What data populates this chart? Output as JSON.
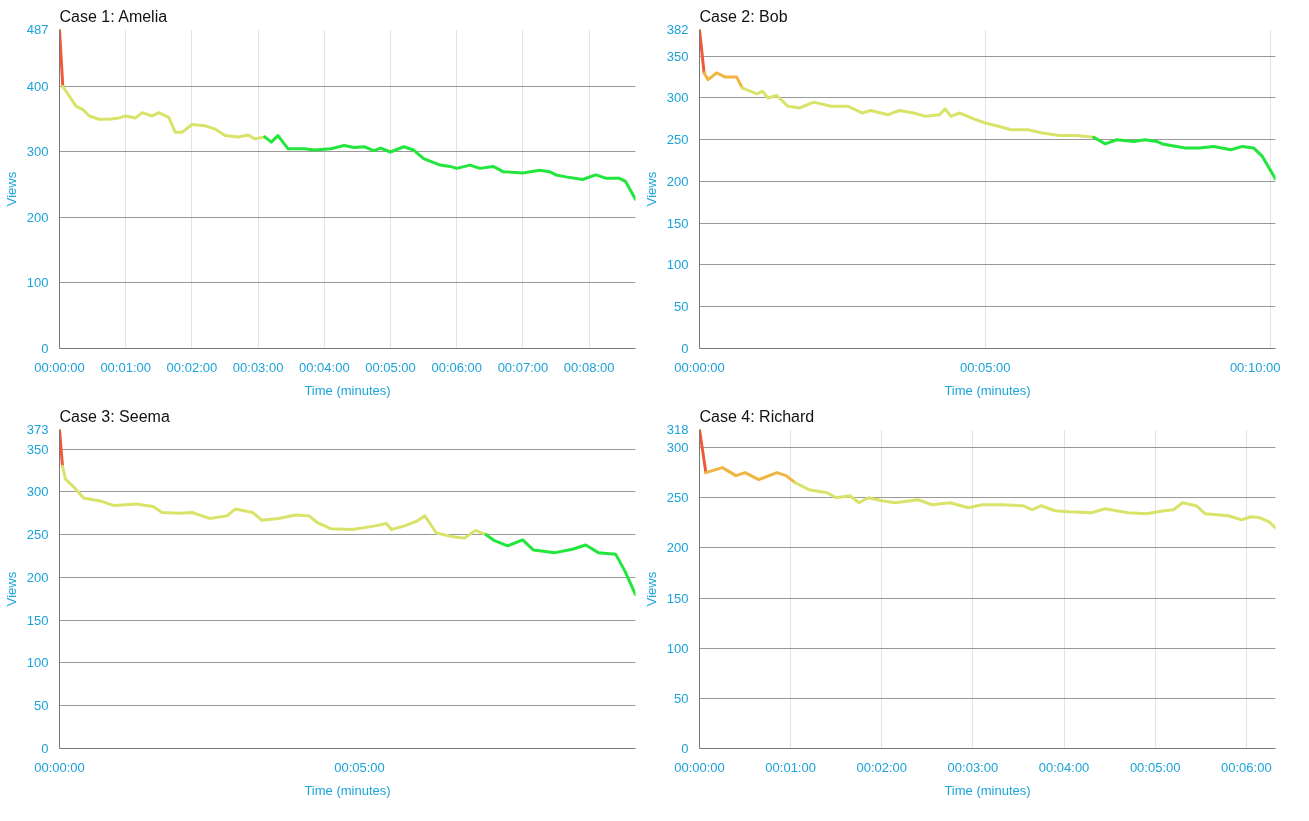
{
  "chart_data": [
    {
      "type": "line",
      "title": "Case 1: Amelia",
      "xlabel": "Time (minutes)",
      "ylabel": "Views",
      "xlim": [
        0,
        8.7
      ],
      "ylim": [
        0,
        487
      ],
      "grid": true,
      "xticks": [
        {
          "value": 0,
          "label": "00:00:00"
        },
        {
          "value": 1,
          "label": "00:01:00"
        },
        {
          "value": 2,
          "label": "00:02:00"
        },
        {
          "value": 3,
          "label": "00:03:00"
        },
        {
          "value": 4,
          "label": "00:04:00"
        },
        {
          "value": 5,
          "label": "00:05:00"
        },
        {
          "value": 6,
          "label": "00:06:00"
        },
        {
          "value": 7,
          "label": "00:07:00"
        },
        {
          "value": 8,
          "label": "00:08:00"
        }
      ],
      "yticks": [
        0,
        100,
        200,
        300,
        400,
        487
      ],
      "series": [
        {
          "color": "#ee5a3a",
          "x": [
            0,
            0.05
          ],
          "values": [
            487,
            400
          ]
        },
        {
          "color": "#d9e36a",
          "x": [
            0.05,
            0.15,
            0.25,
            0.35,
            0.45,
            0.6,
            0.75,
            0.9,
            1.0,
            1.15,
            1.25,
            1.4,
            1.5,
            1.65,
            1.75,
            1.85,
            2.0,
            2.2,
            2.35,
            2.5,
            2.7,
            2.85,
            2.95,
            3.1
          ],
          "values": [
            400,
            385,
            370,
            365,
            355,
            350,
            350,
            352,
            355,
            352,
            360,
            355,
            360,
            353,
            330,
            330,
            342,
            340,
            335,
            325,
            323,
            326,
            320,
            323
          ]
        },
        {
          "color": "#22e63c",
          "x": [
            3.1,
            3.2,
            3.3,
            3.45,
            3.7,
            3.85,
            4.1,
            4.3,
            4.45,
            4.6,
            4.75,
            4.85,
            5.0,
            5.2,
            5.35,
            5.5,
            5.75,
            5.9,
            6.0,
            6.2,
            6.35,
            6.55,
            6.7,
            7.0,
            7.25,
            7.4,
            7.5,
            7.65,
            7.9,
            8.1,
            8.25,
            8.45,
            8.55,
            8.7
          ],
          "values": [
            323,
            315,
            325,
            305,
            305,
            303,
            305,
            310,
            307,
            308,
            302,
            306,
            300,
            308,
            303,
            290,
            280,
            278,
            275,
            280,
            275,
            278,
            270,
            268,
            272,
            270,
            265,
            262,
            258,
            265,
            260,
            260,
            255,
            228
          ]
        }
      ]
    },
    {
      "type": "line",
      "title": "Case 2: Bob",
      "xlabel": "Time (minutes)",
      "ylabel": "Views",
      "xlim": [
        0,
        10.08
      ],
      "ylim": [
        0,
        382
      ],
      "grid": true,
      "xticks": [
        {
          "value": 0,
          "label": "00:00:00"
        },
        {
          "value": 5,
          "label": "00:05:00"
        },
        {
          "value": 10,
          "label": "00:10:00"
        }
      ],
      "yticks": [
        0,
        50,
        100,
        150,
        200,
        250,
        300,
        350,
        382
      ],
      "series": [
        {
          "color": "#ee5a3a",
          "x": [
            0,
            0.08
          ],
          "values": [
            382,
            330
          ]
        },
        {
          "color": "#f0b440",
          "x": [
            0.08,
            0.15,
            0.3,
            0.45,
            0.65,
            0.75
          ],
          "values": [
            330,
            322,
            330,
            325,
            325,
            312
          ]
        },
        {
          "color": "#d9e36a",
          "x": [
            0.75,
            1.0,
            1.1,
            1.2,
            1.35,
            1.55,
            1.75,
            2.0,
            2.3,
            2.6,
            2.85,
            3.0,
            3.3,
            3.5,
            3.75,
            3.95,
            4.2,
            4.3,
            4.4,
            4.55,
            4.8,
            5.0,
            5.3,
            5.45,
            5.75,
            6.0,
            6.3,
            6.6,
            6.9
          ],
          "values": [
            312,
            305,
            308,
            300,
            303,
            290,
            288,
            295,
            290,
            290,
            282,
            285,
            280,
            285,
            282,
            278,
            280,
            287,
            278,
            282,
            275,
            270,
            265,
            262,
            262,
            258,
            255,
            255,
            253
          ]
        },
        {
          "color": "#22e63c",
          "x": [
            6.9,
            7.1,
            7.3,
            7.6,
            7.8,
            8.0,
            8.1,
            8.25,
            8.5,
            8.75,
            9.0,
            9.3,
            9.5,
            9.7,
            9.85,
            10.08
          ],
          "values": [
            253,
            245,
            250,
            248,
            250,
            248,
            245,
            243,
            240,
            240,
            242,
            238,
            242,
            240,
            230,
            203
          ]
        }
      ]
    },
    {
      "type": "line",
      "title": "Case 3: Seema",
      "xlabel": "Time (minutes)",
      "ylabel": "Views",
      "xlim": [
        0,
        9.6
      ],
      "ylim": [
        0,
        373
      ],
      "grid": "y",
      "xticks": [
        {
          "value": 0,
          "label": "00:00:00"
        },
        {
          "value": 5,
          "label": "00:05:00"
        }
      ],
      "yticks": [
        0,
        50,
        100,
        150,
        200,
        250,
        300,
        350,
        373
      ],
      "series": [
        {
          "color": "#ee5a3a",
          "x": [
            0,
            0.05
          ],
          "values": [
            373,
            330
          ]
        },
        {
          "color": "#d9e36a",
          "x": [
            0.05,
            0.1,
            0.25,
            0.4,
            0.7,
            0.91,
            1.28,
            1.56,
            1.71,
            1.99,
            2.21,
            2.5,
            2.79,
            2.93,
            3.22,
            3.37,
            3.65,
            3.94,
            4.16,
            4.3,
            4.52,
            4.88,
            5.24,
            5.45,
            5.53,
            5.74,
            5.96,
            6.09,
            6.28,
            6.53,
            6.75,
            6.93,
            7.11
          ],
          "values": [
            330,
            315,
            305,
            293,
            289,
            284,
            286,
            283,
            276,
            275,
            276,
            269,
            272,
            280,
            276,
            267,
            269,
            273,
            272,
            264,
            257,
            256,
            260,
            263,
            256,
            260,
            266,
            272,
            252,
            248,
            246,
            255,
            250
          ]
        },
        {
          "color": "#22e63c",
          "x": [
            7.11,
            7.25,
            7.47,
            7.72,
            7.9,
            8.26,
            8.55,
            8.77,
            8.98,
            9.27,
            9.42,
            9.6
          ],
          "values": [
            250,
            243,
            237,
            244,
            232,
            229,
            233,
            238,
            229,
            227,
            208,
            180
          ]
        }
      ]
    },
    {
      "type": "line",
      "title": "Case 4: Richard",
      "xlabel": "Time (minutes)",
      "ylabel": "Views",
      "xlim": [
        0,
        6.32
      ],
      "ylim": [
        0,
        318
      ],
      "grid": true,
      "xticks": [
        {
          "value": 0,
          "label": "00:00:00"
        },
        {
          "value": 1,
          "label": "00:01:00"
        },
        {
          "value": 2,
          "label": "00:02:00"
        },
        {
          "value": 3,
          "label": "00:03:00"
        },
        {
          "value": 4,
          "label": "00:04:00"
        },
        {
          "value": 5,
          "label": "00:05:00"
        },
        {
          "value": 6,
          "label": "00:06:00"
        }
      ],
      "yticks": [
        0,
        50,
        100,
        150,
        200,
        250,
        300,
        318
      ],
      "series": [
        {
          "color": "#ee5a3a",
          "x": [
            0,
            0.07
          ],
          "values": [
            318,
            275
          ]
        },
        {
          "color": "#f0b440",
          "x": [
            0.07,
            0.25,
            0.4,
            0.5,
            0.65,
            0.85,
            0.95,
            1.05
          ],
          "values": [
            275,
            280,
            272,
            275,
            268,
            275,
            272,
            265
          ]
        },
        {
          "color": "#d9e36a",
          "x": [
            1.05,
            1.2,
            1.4,
            1.5,
            1.65,
            1.75,
            1.85,
            2.0,
            2.15,
            2.4,
            2.55,
            2.75,
            2.95,
            3.1,
            3.3,
            3.55,
            3.65,
            3.75,
            3.9,
            4.05,
            4.3,
            4.45,
            4.7,
            4.9,
            5.1,
            5.2,
            5.3,
            5.45,
            5.55,
            5.8,
            5.95,
            6.05,
            6.15,
            6.25,
            6.32
          ],
          "values": [
            265,
            258,
            255,
            250,
            252,
            245,
            250,
            247,
            245,
            248,
            243,
            245,
            240,
            243,
            243,
            242,
            238,
            242,
            237,
            236,
            235,
            239,
            235,
            234,
            237,
            238,
            245,
            242,
            234,
            232,
            228,
            231,
            230,
            226,
            220
          ]
        }
      ]
    }
  ]
}
